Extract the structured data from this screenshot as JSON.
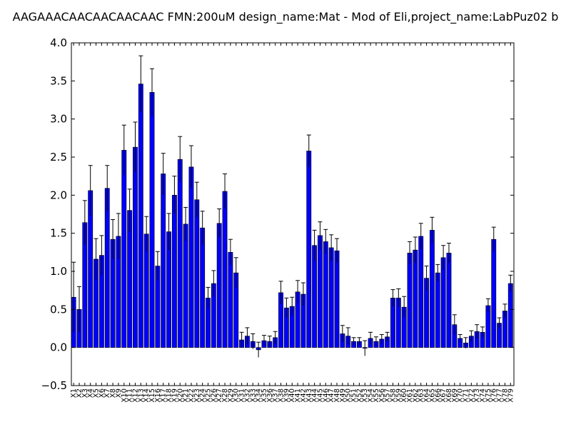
{
  "chart_data": {
    "type": "bar",
    "title": "AAGAAACAACAACAACAAC  FMN:200uM  design_name:Mat - Mod of Eli,project_name:LabPuz02 b",
    "xlabel": "",
    "ylabel": "",
    "ylim": [
      -0.5,
      4.0
    ],
    "yticks": [
      "4.0",
      "3.5",
      "3.0",
      "2.5",
      "2.0",
      "1.5",
      "1.0",
      "0.5",
      "0.0",
      "−0.5"
    ],
    "ytick_values": [
      4.0,
      3.5,
      3.0,
      2.5,
      2.0,
      1.5,
      1.0,
      0.5,
      0.0,
      -0.5
    ],
    "grid": false,
    "legend": "none",
    "bar_color": "#0000ff",
    "error_color": "#000000",
    "categories": [
      "X1",
      "X2",
      "X3",
      "X4",
      "X5",
      "X6",
      "X7",
      "X8",
      "X9",
      "X10",
      "X11",
      "X12",
      "X13",
      "X14",
      "X15",
      "X16",
      "X17",
      "X18",
      "X19",
      "X20",
      "X21",
      "X22",
      "X23",
      "X24",
      "X25",
      "X26",
      "X27",
      "X28",
      "X29",
      "X30",
      "X31",
      "X32",
      "X33",
      "X34",
      "X35",
      "X36",
      "X37",
      "X38",
      "X39",
      "X40",
      "X41",
      "X42",
      "X43",
      "X44",
      "X45",
      "X46",
      "X47",
      "X48",
      "X49",
      "X50",
      "X51",
      "X52",
      "X53",
      "X54",
      "X55",
      "X56",
      "X57",
      "X58",
      "X59",
      "X60",
      "X61",
      "X62",
      "X63",
      "X64",
      "X65",
      "X66",
      "X67",
      "X68",
      "X69",
      "X70",
      "X71",
      "X72",
      "X73",
      "X74",
      "X75",
      "X76",
      "X77",
      "X78",
      "X79"
    ],
    "values": [
      0.66,
      0.5,
      1.64,
      2.06,
      1.16,
      1.21,
      2.09,
      1.42,
      1.46,
      2.59,
      1.8,
      2.63,
      3.46,
      1.49,
      3.35,
      1.07,
      2.28,
      1.52,
      2.0,
      2.47,
      1.62,
      2.37,
      1.94,
      1.57,
      0.65,
      0.84,
      1.63,
      2.05,
      1.25,
      0.98,
      0.1,
      0.15,
      0.08,
      -0.03,
      0.09,
      0.08,
      0.13,
      0.72,
      0.52,
      0.54,
      0.73,
      0.7,
      2.58,
      1.34,
      1.47,
      1.39,
      1.31,
      1.27,
      0.18,
      0.15,
      0.08,
      0.08,
      -0.01,
      0.12,
      0.08,
      0.11,
      0.14,
      0.65,
      0.65,
      0.53,
      1.24,
      1.28,
      1.46,
      0.91,
      1.54,
      0.98,
      1.18,
      1.24,
      0.3,
      0.12,
      0.06,
      0.15,
      0.21,
      0.2,
      0.55,
      1.42,
      0.32,
      0.48,
      0.84
    ],
    "errors": [
      0.46,
      0.3,
      0.29,
      0.33,
      0.27,
      0.26,
      0.3,
      0.26,
      0.3,
      0.33,
      0.28,
      0.33,
      0.37,
      0.23,
      0.31,
      0.19,
      0.27,
      0.24,
      0.25,
      0.3,
      0.22,
      0.28,
      0.23,
      0.22,
      0.14,
      0.17,
      0.19,
      0.23,
      0.17,
      0.2,
      0.1,
      0.11,
      0.1,
      0.1,
      0.07,
      0.07,
      0.08,
      0.15,
      0.13,
      0.12,
      0.15,
      0.15,
      0.21,
      0.2,
      0.18,
      0.16,
      0.17,
      0.16,
      0.11,
      0.11,
      0.05,
      0.05,
      0.1,
      0.08,
      0.06,
      0.06,
      0.06,
      0.11,
      0.12,
      0.14,
      0.15,
      0.17,
      0.17,
      0.16,
      0.17,
      0.11,
      0.16,
      0.13,
      0.13,
      0.05,
      0.07,
      0.07,
      0.09,
      0.07,
      0.09,
      0.16,
      0.07,
      0.09,
      0.11
    ]
  }
}
